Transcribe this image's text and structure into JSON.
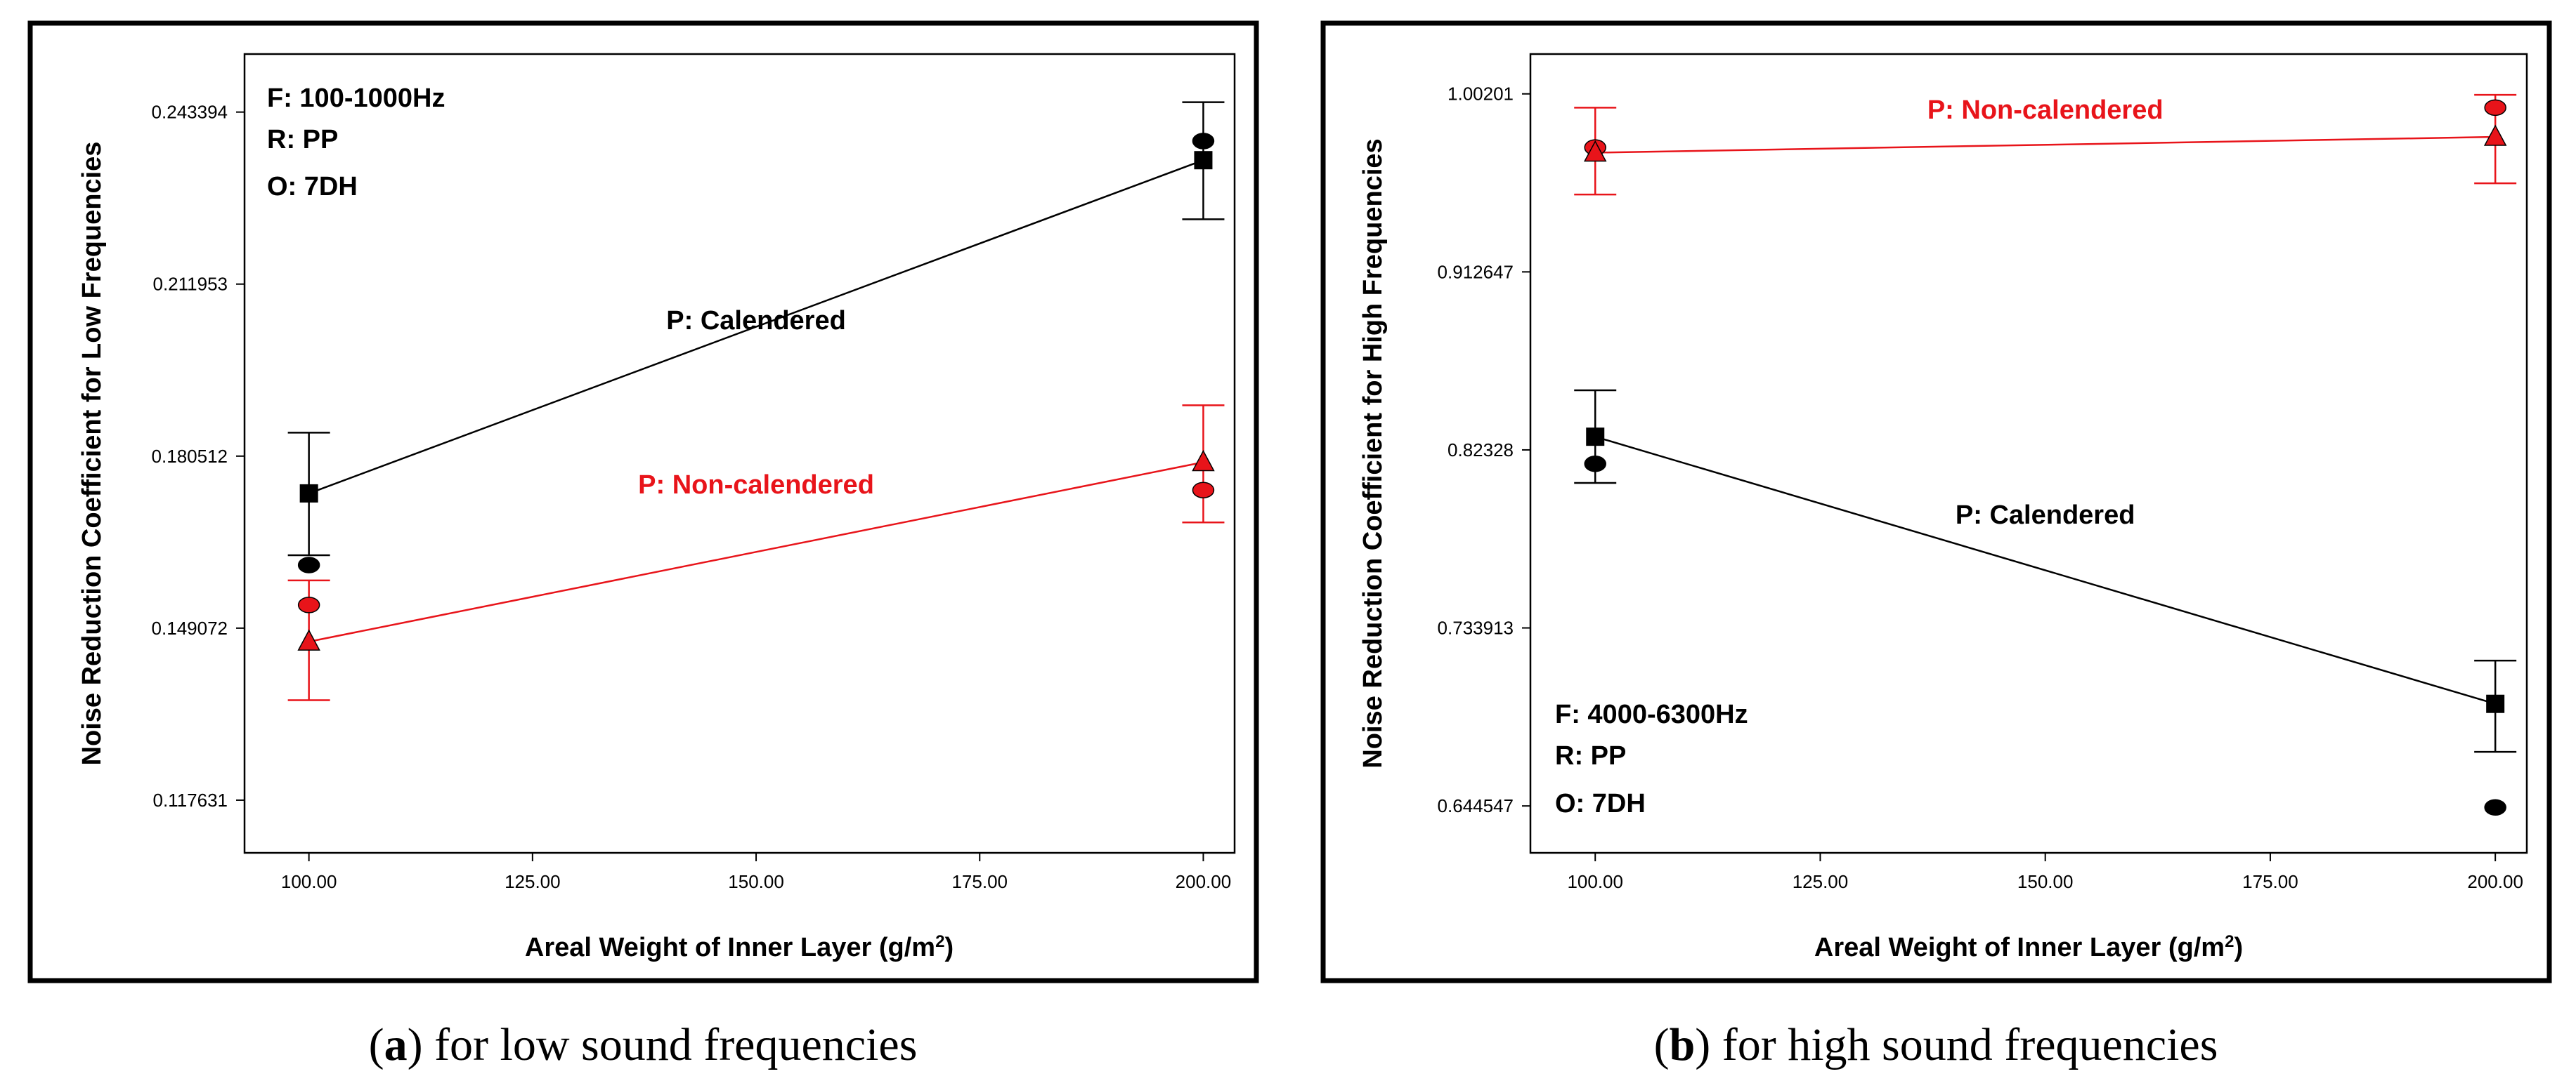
{
  "colors": {
    "calendered": "#000000",
    "non_calendered": "#e8141a",
    "frame": "#000000"
  },
  "charts": [
    {
      "caption_letter": "a",
      "caption_text": " for low sound frequencies",
      "info_lines": [
        "F: 100-1000Hz",
        "R: PP",
        "O: 7DH"
      ],
      "chart_data": {
        "type": "line",
        "title": "",
        "xlabel": "Areal Weight of Inner Layer (g/m",
        "xlabel_sup": "2",
        "xlabel_end": ")",
        "ylabel": "Noise Reduction Coefficient for Low Frequencies",
        "x_ticks": [
          "100.00",
          "125.00",
          "150.00",
          "175.00",
          "200.00"
        ],
        "x_tick_values": [
          100,
          125,
          150,
          175,
          200
        ],
        "y_ticks": [
          "0.117631",
          "0.149072",
          "0.180512",
          "0.211953",
          "0.243394"
        ],
        "y_tick_values": [
          0.117631,
          0.149072,
          0.180512,
          0.211953,
          0.243394
        ],
        "xlim": [
          92.8,
          203.5
        ],
        "ylim": [
          0.108,
          0.254
        ],
        "series": [
          {
            "name": "P: Calendered",
            "color": "#000000",
            "x": [
              100,
              200
            ],
            "predicted": [
              0.1737,
              0.2346
            ],
            "ci_low": [
              0.1624,
              0.2238
            ],
            "ci_high": [
              0.1848,
              0.2452
            ],
            "observed": [
              0.1606,
              0.2381
            ],
            "pred_marker": "square",
            "obs_marker": "circle",
            "label_anchor": [
              0.2037,
              150
            ]
          },
          {
            "name": "P: Non-calendered",
            "color": "#e8141a",
            "x": [
              100,
              200
            ],
            "predicted": [
              0.1466,
              0.1794
            ],
            "ci_low": [
              0.1359,
              0.1684
            ],
            "ci_high": [
              0.1578,
              0.1898
            ],
            "observed": [
              0.1533,
              0.1743
            ],
            "pred_marker": "triangle",
            "obs_marker": "circle",
            "label_anchor": [
              0.1737,
              150
            ]
          }
        ]
      }
    },
    {
      "caption_letter": "b",
      "caption_text": " for high sound frequencies",
      "info_lines": [
        "F: 4000-6300Hz",
        "R: PP",
        "O: 7DH"
      ],
      "chart_data": {
        "type": "line",
        "title": "",
        "xlabel": "Areal Weight of Inner Layer (g/m",
        "xlabel_sup": "2",
        "xlabel_end": ")",
        "ylabel": "Noise Reduction Coefficient for High Frequencies",
        "x_ticks": [
          "100.00",
          "125.00",
          "150.00",
          "175.00",
          "200.00"
        ],
        "x_tick_values": [
          100,
          125,
          150,
          175,
          200
        ],
        "y_ticks": [
          "0.644547",
          "0.733913",
          "0.82328",
          "0.912647",
          "1.00201"
        ],
        "y_tick_values": [
          0.644547,
          0.733913,
          0.82328,
          0.912647,
          1.00201
        ],
        "xlim": [
          92.8,
          203.5
        ],
        "ylim": [
          0.621,
          1.022
        ],
        "series": [
          {
            "name": "P: Non-calendered",
            "color": "#e8141a",
            "x": [
              100,
              200
            ],
            "predicted": [
              0.9725,
              0.9804
            ],
            "ci_low": [
              0.9515,
              0.9571
            ],
            "ci_high": [
              0.9951,
              1.0015
            ],
            "observed": [
              0.9751,
              0.9951
            ],
            "pred_marker": "triangle",
            "obs_marker": "circle",
            "label_anchor": [
              0.9895,
              150
            ]
          },
          {
            "name": "P: Calendered",
            "color": "#000000",
            "x": [
              100,
              200
            ],
            "predicted": [
              0.8299,
              0.6958
            ],
            "ci_low": [
              0.8067,
              0.6717
            ],
            "ci_high": [
              0.8532,
              0.7175
            ],
            "observed": [
              0.8163,
              0.6438
            ],
            "pred_marker": "square",
            "obs_marker": "circle",
            "label_anchor": [
              0.7862,
              150
            ]
          }
        ]
      }
    }
  ]
}
